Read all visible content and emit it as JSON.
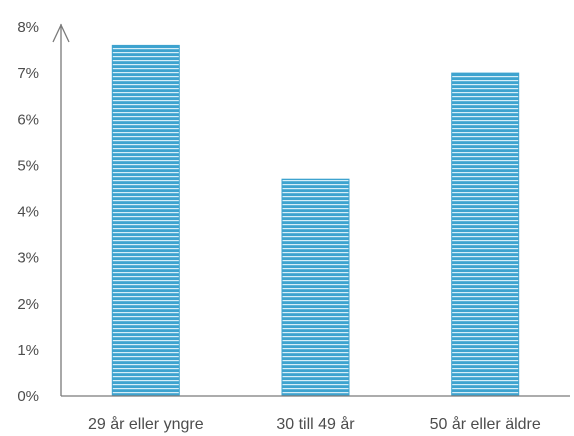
{
  "chart_data": {
    "type": "bar",
    "categories": [
      "29 år eller yngre",
      "30 till 49 år",
      "50 år eller äldre"
    ],
    "values": [
      7.6,
      4.7,
      7.0
    ],
    "ylim": [
      0,
      8
    ],
    "yticks": [
      "0%",
      "1%",
      "2%",
      "3%",
      "4%",
      "5%",
      "6%",
      "7%",
      "8%"
    ],
    "grid": false,
    "legend": "none",
    "bar_color": "#3ea3cf",
    "bar_stripe_color": "#d6eef8",
    "axis_color": "#7a7a7a",
    "text_color": "#4d4d4d"
  }
}
